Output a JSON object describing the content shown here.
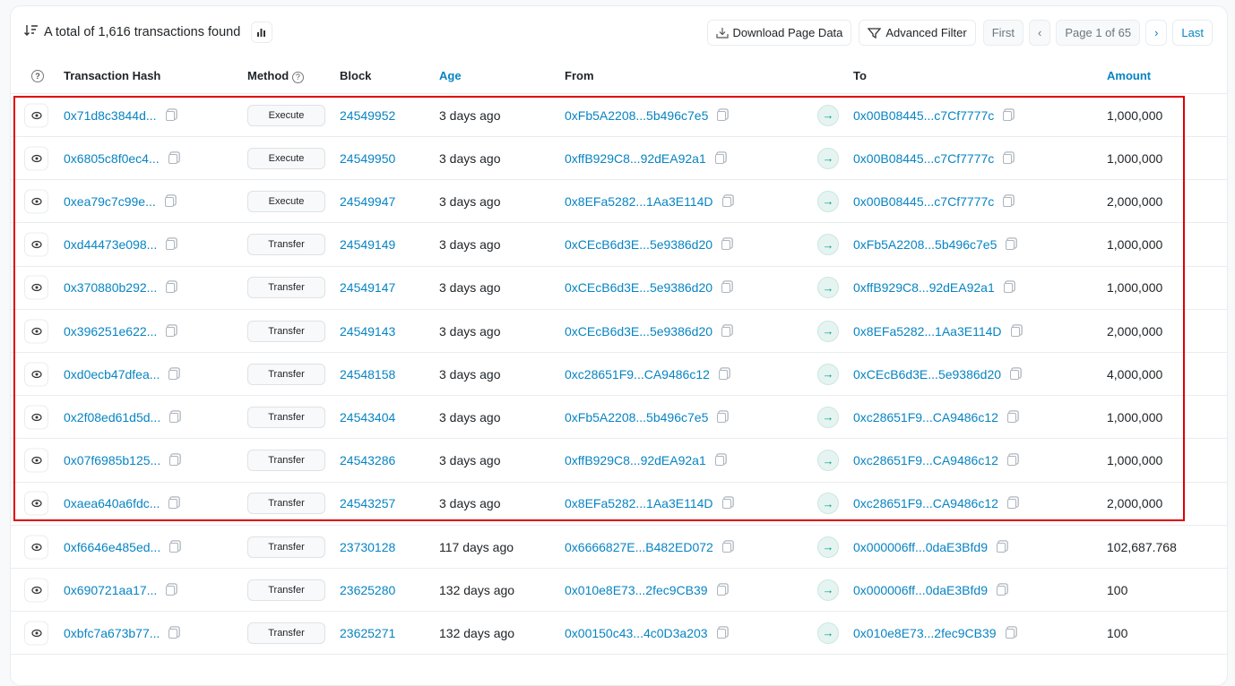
{
  "summary": {
    "text": "A total of 1,616 transactions found",
    "sort_icon": "sort-desc-icon",
    "chart_icon": "bar-chart-icon"
  },
  "toolbar": {
    "download": "Download Page Data",
    "filter": "Advanced Filter",
    "first": "First",
    "page": "Page 1 of 65",
    "last": "Last"
  },
  "columns": {
    "info": "?",
    "hash": "Transaction Hash",
    "method": "Method",
    "block": "Block",
    "age": "Age",
    "from": "From",
    "to": "To",
    "amount": "Amount"
  },
  "colors": {
    "link": "#0784c3",
    "highlight": "#e00000",
    "arrow": "#00a186"
  },
  "rows": [
    {
      "hash": "0x71d8c3844d...",
      "method": "Execute",
      "block": "24549952",
      "age": "3 days ago",
      "from": "0xFb5A2208...5b496c7e5",
      "to": "0x00B08445...c7Cf7777c",
      "amount": "1,000,000"
    },
    {
      "hash": "0x6805c8f0ec4...",
      "method": "Execute",
      "block": "24549950",
      "age": "3 days ago",
      "from": "0xffB929C8...92dEA92a1",
      "to": "0x00B08445...c7Cf7777c",
      "amount": "1,000,000"
    },
    {
      "hash": "0xea79c7c99e...",
      "method": "Execute",
      "block": "24549947",
      "age": "3 days ago",
      "from": "0x8EFa5282...1Aa3E114D",
      "to": "0x00B08445...c7Cf7777c",
      "amount": "2,000,000"
    },
    {
      "hash": "0xd44473e098...",
      "method": "Transfer",
      "block": "24549149",
      "age": "3 days ago",
      "from": "0xCEcB6d3E...5e9386d20",
      "to": "0xFb5A2208...5b496c7e5",
      "amount": "1,000,000"
    },
    {
      "hash": "0x370880b292...",
      "method": "Transfer",
      "block": "24549147",
      "age": "3 days ago",
      "from": "0xCEcB6d3E...5e9386d20",
      "to": "0xffB929C8...92dEA92a1",
      "amount": "1,000,000"
    },
    {
      "hash": "0x396251e622...",
      "method": "Transfer",
      "block": "24549143",
      "age": "3 days ago",
      "from": "0xCEcB6d3E...5e9386d20",
      "to": "0x8EFa5282...1Aa3E114D",
      "amount": "2,000,000"
    },
    {
      "hash": "0xd0ecb47dfea...",
      "method": "Transfer",
      "block": "24548158",
      "age": "3 days ago",
      "from": "0xc28651F9...CA9486c12",
      "to": "0xCEcB6d3E...5e9386d20",
      "amount": "4,000,000"
    },
    {
      "hash": "0x2f08ed61d5d...",
      "method": "Transfer",
      "block": "24543404",
      "age": "3 days ago",
      "from": "0xFb5A2208...5b496c7e5",
      "to": "0xc28651F9...CA9486c12",
      "amount": "1,000,000"
    },
    {
      "hash": "0x07f6985b125...",
      "method": "Transfer",
      "block": "24543286",
      "age": "3 days ago",
      "from": "0xffB929C8...92dEA92a1",
      "to": "0xc28651F9...CA9486c12",
      "amount": "1,000,000"
    },
    {
      "hash": "0xaea640a6fdc...",
      "method": "Transfer",
      "block": "24543257",
      "age": "3 days ago",
      "from": "0x8EFa5282...1Aa3E114D",
      "to": "0xc28651F9...CA9486c12",
      "amount": "2,000,000"
    },
    {
      "hash": "0xf6646e485ed...",
      "method": "Transfer",
      "block": "23730128",
      "age": "117 days ago",
      "from": "0x6666827E...B482ED072",
      "to": "0x000006ff...0daE3Bfd9",
      "amount": "102,687.768"
    },
    {
      "hash": "0x690721aa17...",
      "method": "Transfer",
      "block": "23625280",
      "age": "132 days ago",
      "from": "0x010e8E73...2fec9CB39",
      "to": "0x000006ff...0daE3Bfd9",
      "amount": "100"
    },
    {
      "hash": "0xbfc7a673b77...",
      "method": "Transfer",
      "block": "23625271",
      "age": "132 days ago",
      "from": "0x00150c43...4c0D3a203",
      "to": "0x010e8E73...2fec9CB39",
      "amount": "100"
    }
  ]
}
